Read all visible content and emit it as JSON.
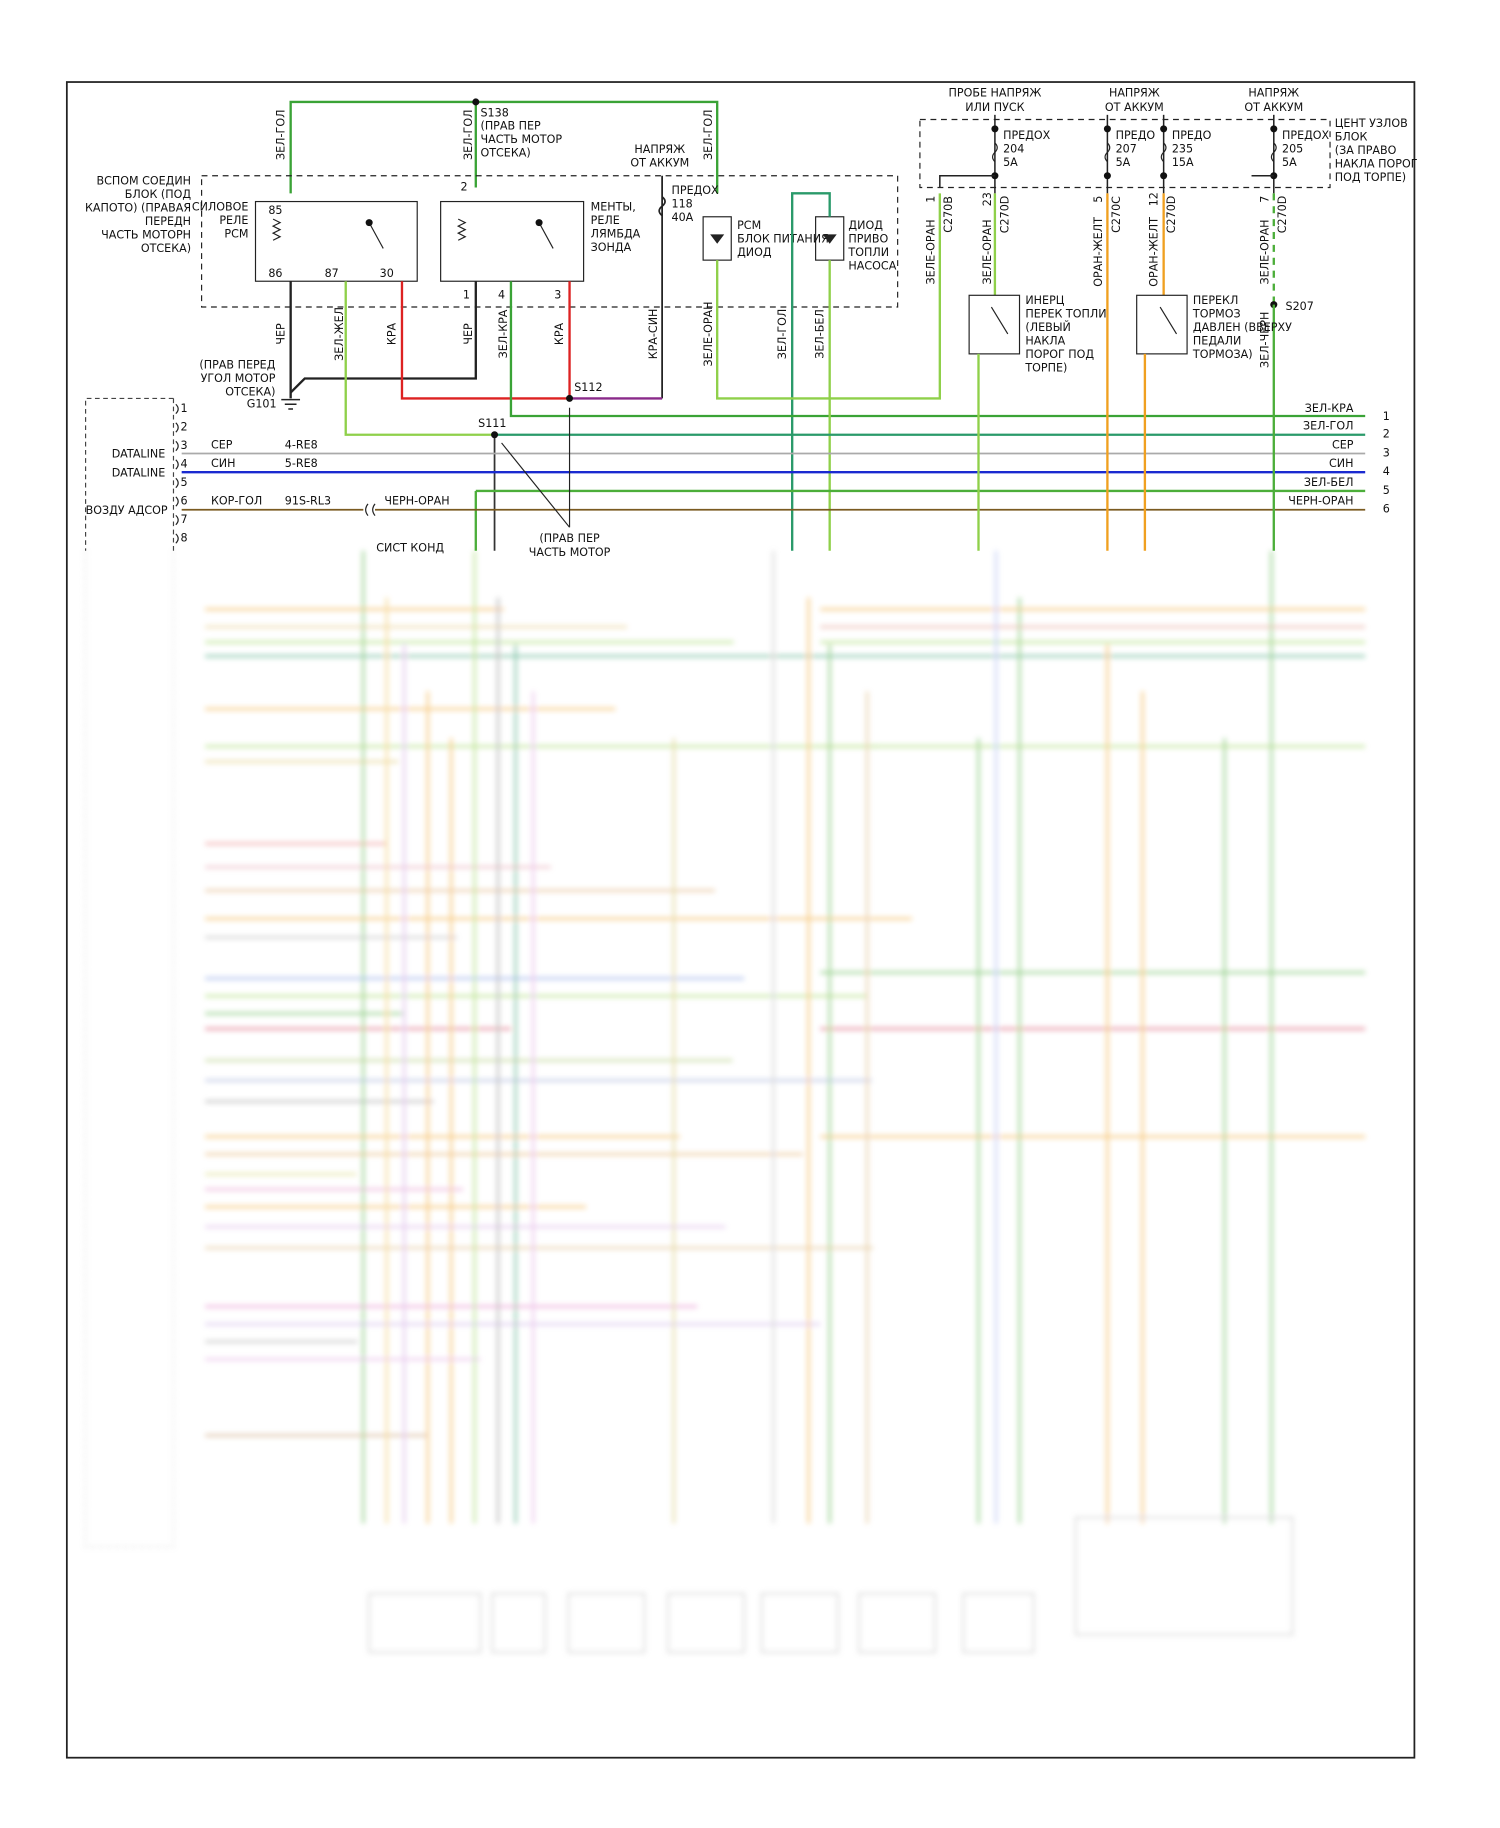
{
  "top_feed": {
    "wires": [
      "ЗЕЛ-ГОЛ",
      "ЗЕЛ-ГОЛ",
      "ЗЕЛ-ГОЛ"
    ],
    "splice": "S138",
    "splice_location": [
      "(ПРАВ ПЕР",
      "ЧАСТЬ МОТОР",
      "ОТСЕКА)"
    ]
  },
  "aux_block": {
    "label": [
      "ВСПОМ СОЕДИН",
      "БЛОК (ПОД",
      "КАПОТО) (ПРАВАЯ",
      "ПЕРЕДН",
      "ЧАСТЬ МОТОРН",
      "ОТСЕКА)"
    ],
    "power_relay": {
      "label": [
        "СИЛОВОЕ",
        "РЕЛЕ",
        "PCM"
      ],
      "pins": [
        "85",
        "86",
        "87",
        "30"
      ]
    },
    "o2_relay": {
      "label": [
        "МЕНТЫ,",
        "РЕЛЕ",
        "ЛЯМБДА",
        "ЗОНДА"
      ],
      "pins": [
        "2",
        "1",
        "4",
        "3"
      ]
    },
    "battery": [
      "НАПРЯЖ",
      "ОТ АККУМ"
    ],
    "fuse": [
      "ПРЕДОХ",
      "118",
      "40A"
    ],
    "pcm_diode": [
      "PCM",
      "БЛОК ПИТАНИЯ",
      "ДИОД"
    ],
    "pump_diode": [
      "ДИОД",
      "ПРИВО",
      "ТОПЛИ",
      "НАСОСА"
    ]
  },
  "lower_wires": [
    "ЧЕР",
    "ЗЕЛ-ЖЕЛ",
    "КРА",
    "ЧЕР",
    "ЗЕЛ-КРА",
    "КРА",
    "КРА-СИН",
    "ЗЕЛЕ-ОРАН",
    "ЗЕЛ-ГОЛ",
    "ЗЕЛ-БЕЛ"
  ],
  "ground": {
    "location": [
      "(ПРАВ ПЕРЕД",
      "УГОЛ МОТОР",
      "ОТСЕКА)"
    ],
    "name": "G101"
  },
  "splices": {
    "s112": "S112",
    "s111": "S111",
    "s111_location": [
      "(ПРАВ ПЕР",
      "ЧАСТЬ МОТОР"
    ]
  },
  "ac_system": "СИСТ КОНД",
  "central_block": {
    "feeds": [
      [
        "ПРОБЕ НАПРЯЖ",
        "ИЛИ ПУСК"
      ],
      [
        "НАПРЯЖ",
        "ОТ АККУМ"
      ],
      [
        "НАПРЯЖ",
        "ОТ АККУМ"
      ]
    ],
    "fuses": [
      [
        "ПРЕДОХ",
        "204",
        "5A"
      ],
      [
        "ПРЕДО",
        "207",
        "5A"
      ],
      [
        "ПРЕДО",
        "235",
        "15A"
      ],
      [
        "ПРЕДОХ",
        "205",
        "5A"
      ]
    ],
    "label": [
      "ЦЕНТ УЗЛОВ",
      "БЛОК",
      "(ЗА ПРАВО",
      "НАКЛА ПОРОГ",
      "ПОД ТОРПЕ)"
    ],
    "pins": [
      [
        "1",
        "C270B"
      ],
      [
        "23",
        "C270D"
      ],
      [
        "5",
        "C270C"
      ],
      [
        "12",
        "C270D"
      ],
      [
        "7",
        "C270D"
      ]
    ],
    "wires": [
      "ЗЕЛЕ-ОРАН",
      "ЗЕЛЕ-ОРАН",
      "ОРАН-ЖЕЛТ",
      "ОРАН-ЖЕЛТ",
      "ЗЕЛЕ-ОРАН"
    ]
  },
  "inertia_switch": [
    "ИНЕРЦ",
    "ПЕРЕК ТОПЛИ",
    "(ЛЕВЫЙ",
    "НАКЛА",
    "ПОРОГ ПОД",
    "ТОРПЕ)"
  ],
  "brake_switch": [
    "ПЕРЕКЛ",
    "ТОРМОЗ",
    "ДАВЛЕН (ВВЕРХУ",
    "ПЕДАЛИ",
    "ТОРМОЗА)"
  ],
  "s207": {
    "name": "S207",
    "wire": "ЗЕЛ-ЧЕРН"
  },
  "harness": {
    "wires": [
      {
        "name": "ЗЕЛ-КРА",
        "pin": "1"
      },
      {
        "name": "ЗЕЛ-ГОЛ",
        "pin": "2"
      },
      {
        "name": "СЕР",
        "pin": "3"
      },
      {
        "name": "СИН",
        "pin": "4"
      },
      {
        "name": "ЗЕЛ-БЕЛ",
        "pin": "5"
      },
      {
        "name": "ЧЕРН-ОРАН",
        "pin": "6"
      }
    ]
  },
  "pcm_connector": {
    "pins": [
      "1",
      "2",
      "3",
      "4",
      "5",
      "6",
      "7",
      "8"
    ],
    "dataline": [
      "DATALINE",
      "DATALINE"
    ],
    "canister": "ВОЗДУ АДСОР",
    "rows": [
      [
        "СЕР",
        "4-RE8"
      ],
      [
        "СИН",
        "5-RE8"
      ],
      [
        "КОР-ГОЛ",
        "91S-RL3",
        "ЧЕРН-ОРАН"
      ]
    ]
  }
}
